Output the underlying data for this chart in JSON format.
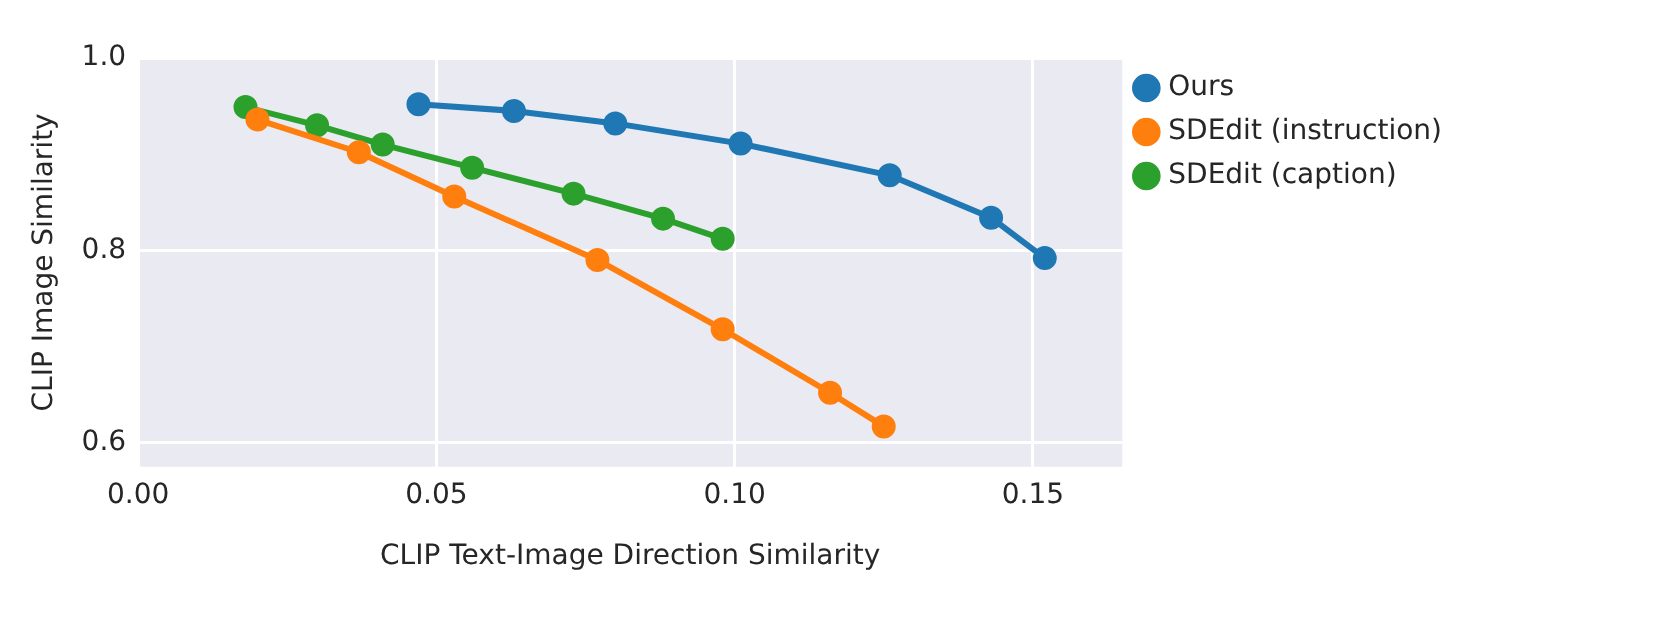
{
  "chart_data": {
    "type": "line",
    "xlabel": "CLIP Text-Image Direction Similarity",
    "ylabel": "CLIP Image Similarity",
    "xlim": [
      0,
      0.165
    ],
    "xticks": [
      {
        "value": 0,
        "label": "0.00"
      },
      {
        "value": 0.05,
        "label": "0.05"
      },
      {
        "value": 0.1,
        "label": "0.10"
      },
      {
        "value": 0.15,
        "label": "0.15"
      }
    ],
    "ylim": [
      0.575,
      1.0
    ],
    "yticks": [
      {
        "value": 0.6,
        "label": "0.6"
      },
      {
        "value": 0.8,
        "label": "0.8"
      },
      {
        "value": 1.0,
        "label": "1.0"
      }
    ],
    "grid": true,
    "legend": "right",
    "marker": "circle",
    "line_style": "solid",
    "series": [
      {
        "name": "Ours",
        "color": "#1f77b4",
        "x": [
          0.047,
          0.063,
          0.08,
          0.101,
          0.126,
          0.143,
          0.152
        ],
        "values": [
          0.952,
          0.945,
          0.932,
          0.911,
          0.878,
          0.834,
          0.792
        ]
      },
      {
        "name": "SDEdit (instruction)",
        "color": "#ff7f0e",
        "x": [
          0.02,
          0.037,
          0.053,
          0.077,
          0.098,
          0.116,
          0.125
        ],
        "values": [
          0.936,
          0.902,
          0.856,
          0.79,
          0.718,
          0.652,
          0.617
        ]
      },
      {
        "name": "SDEdit (caption)",
        "color": "#2ca02c",
        "x": [
          0.018,
          0.03,
          0.041,
          0.056,
          0.073,
          0.088,
          0.098
        ],
        "values": [
          0.949,
          0.93,
          0.91,
          0.886,
          0.859,
          0.833,
          0.812
        ]
      }
    ]
  }
}
